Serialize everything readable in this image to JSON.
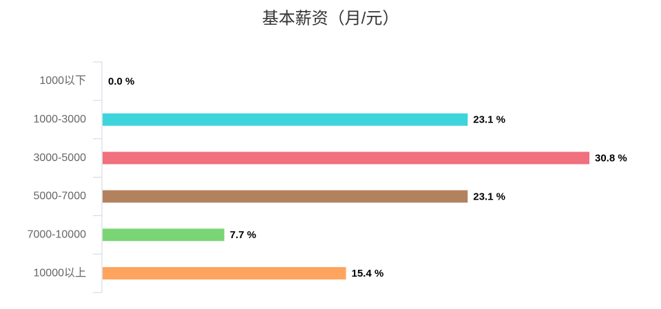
{
  "chart_data": {
    "type": "bar",
    "orientation": "horizontal",
    "title": "基本薪资（月/元）",
    "categories": [
      "1000以下",
      "1000-3000",
      "3000-5000",
      "5000-7000",
      "7000-10000",
      "10000以上"
    ],
    "values": [
      0,
      23.1,
      30.8,
      23.1,
      7.7,
      15.4
    ],
    "value_labels": [
      "0.0 %",
      "23.1 %",
      "30.8 %",
      "23.1 %",
      "7.7 %",
      "15.4 %"
    ],
    "colors": [
      "#3dd4dc",
      "#3dd4dc",
      "#f0707e",
      "#b2825e",
      "#7ad574",
      "#ffa45e"
    ]
  }
}
